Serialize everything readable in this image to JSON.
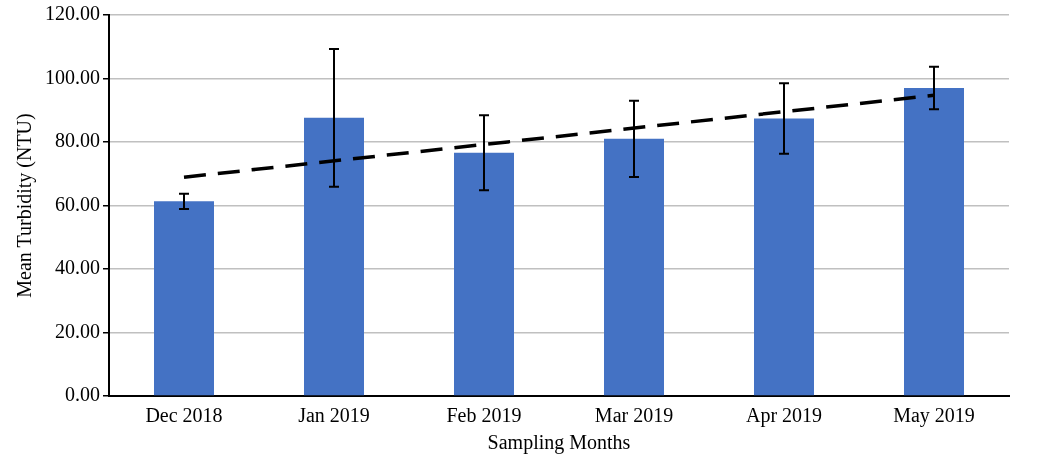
{
  "chart_data": {
    "type": "bar",
    "xlabel": "Sampling Months",
    "ylabel": "Mean Turbidity (NTU)",
    "categories": [
      "Dec 2018",
      "Jan 2019",
      "Feb 2019",
      "Mar 2019",
      "Apr 2019",
      "May 2019"
    ],
    "series": [
      {
        "color": "#4472c4",
        "values": [
          61.3,
          87.6,
          76.6,
          81.0,
          87.4,
          97.0
        ],
        "errors": [
          2.4,
          21.7,
          11.8,
          12.0,
          11.1,
          6.7
        ]
      },
      {
        "type": "line",
        "color": "#000000",
        "line_style": "dashed",
        "marker": "none",
        "x": [
          "Dec 2018",
          "May 2019"
        ],
        "values": [
          68.9,
          94.7
        ]
      }
    ],
    "ylim": [
      0,
      120
    ],
    "yticks": [
      {
        "value": 0,
        "label": "0.00"
      },
      {
        "value": 20,
        "label": "20.00"
      },
      {
        "value": 40,
        "label": "40.00"
      },
      {
        "value": 60,
        "label": "60.00"
      },
      {
        "value": 80,
        "label": "80.00"
      },
      {
        "value": 100,
        "label": "100.00"
      },
      {
        "value": 120,
        "label": "120.00"
      }
    ],
    "grid": "y",
    "legend": false
  }
}
